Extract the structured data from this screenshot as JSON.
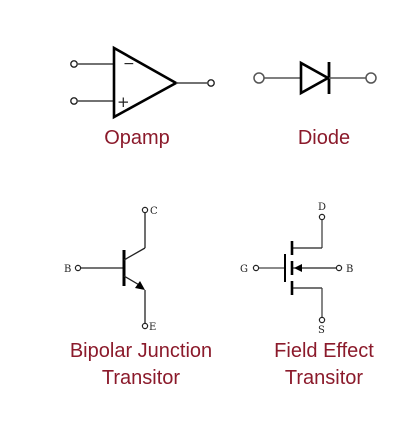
{
  "colors": {
    "caption": "#8b1a2b",
    "symbol_stroke": "#000000",
    "lead_stroke": "#444444"
  },
  "opamp": {
    "caption": "Opamp",
    "minus_sign": "−",
    "plus_sign": "+"
  },
  "diode": {
    "caption": "Diode"
  },
  "bjt": {
    "caption_line1": "Bipolar Junction",
    "caption_line2": "Transitor",
    "pin_base": "B",
    "pin_collector": "C",
    "pin_emitter": "E"
  },
  "fet": {
    "caption_line1": "Field Effect",
    "caption_line2": "Transitor",
    "pin_gate": "G",
    "pin_drain": "D",
    "pin_source": "S",
    "pin_body": "B"
  }
}
